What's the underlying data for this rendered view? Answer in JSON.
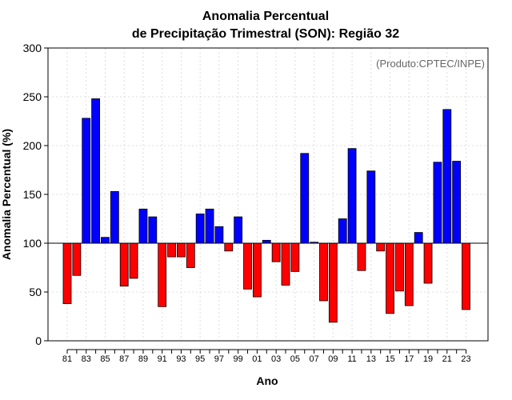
{
  "chart_data": {
    "type": "bar",
    "title": [
      "Anomalia Percentual",
      "de Precipitação Trimestral (SON): Região 32"
    ],
    "xlabel": "Ano",
    "ylabel": "Anomalia Percentual (%)",
    "credit": "(Produto:CPTEC/INPE)",
    "ylim": [
      0,
      300
    ],
    "yticks": [
      "0",
      "50",
      "100",
      "150",
      "200",
      "250",
      "300"
    ],
    "baseline": 100,
    "grid": true,
    "colors": {
      "above": "#0000ff",
      "below": "#ff0000",
      "grid": "#dddddd"
    },
    "categories": [
      "81",
      "82",
      "83",
      "84",
      "85",
      "86",
      "87",
      "88",
      "89",
      "90",
      "91",
      "92",
      "93",
      "94",
      "95",
      "96",
      "97",
      "98",
      "99",
      "00",
      "01",
      "02",
      "03",
      "04",
      "05",
      "06",
      "07",
      "08",
      "09",
      "10",
      "11",
      "12",
      "13",
      "14",
      "15",
      "16",
      "17",
      "18",
      "19",
      "20",
      "21",
      "22",
      "23"
    ],
    "xtick_labels": [
      "81",
      "83",
      "85",
      "87",
      "89",
      "91",
      "93",
      "95",
      "97",
      "99",
      "01",
      "03",
      "05",
      "07",
      "09",
      "11",
      "13",
      "15",
      "17",
      "19",
      "21",
      "23"
    ],
    "values": [
      38,
      67,
      228,
      248,
      106,
      153,
      56,
      64,
      135,
      127,
      35,
      86,
      86,
      75,
      130,
      135,
      117,
      92,
      127,
      53,
      45,
      103,
      81,
      57,
      71,
      192,
      101,
      41,
      19,
      125,
      197,
      72,
      174,
      92,
      28,
      51,
      36,
      111,
      59,
      183,
      237,
      184,
      32
    ]
  }
}
